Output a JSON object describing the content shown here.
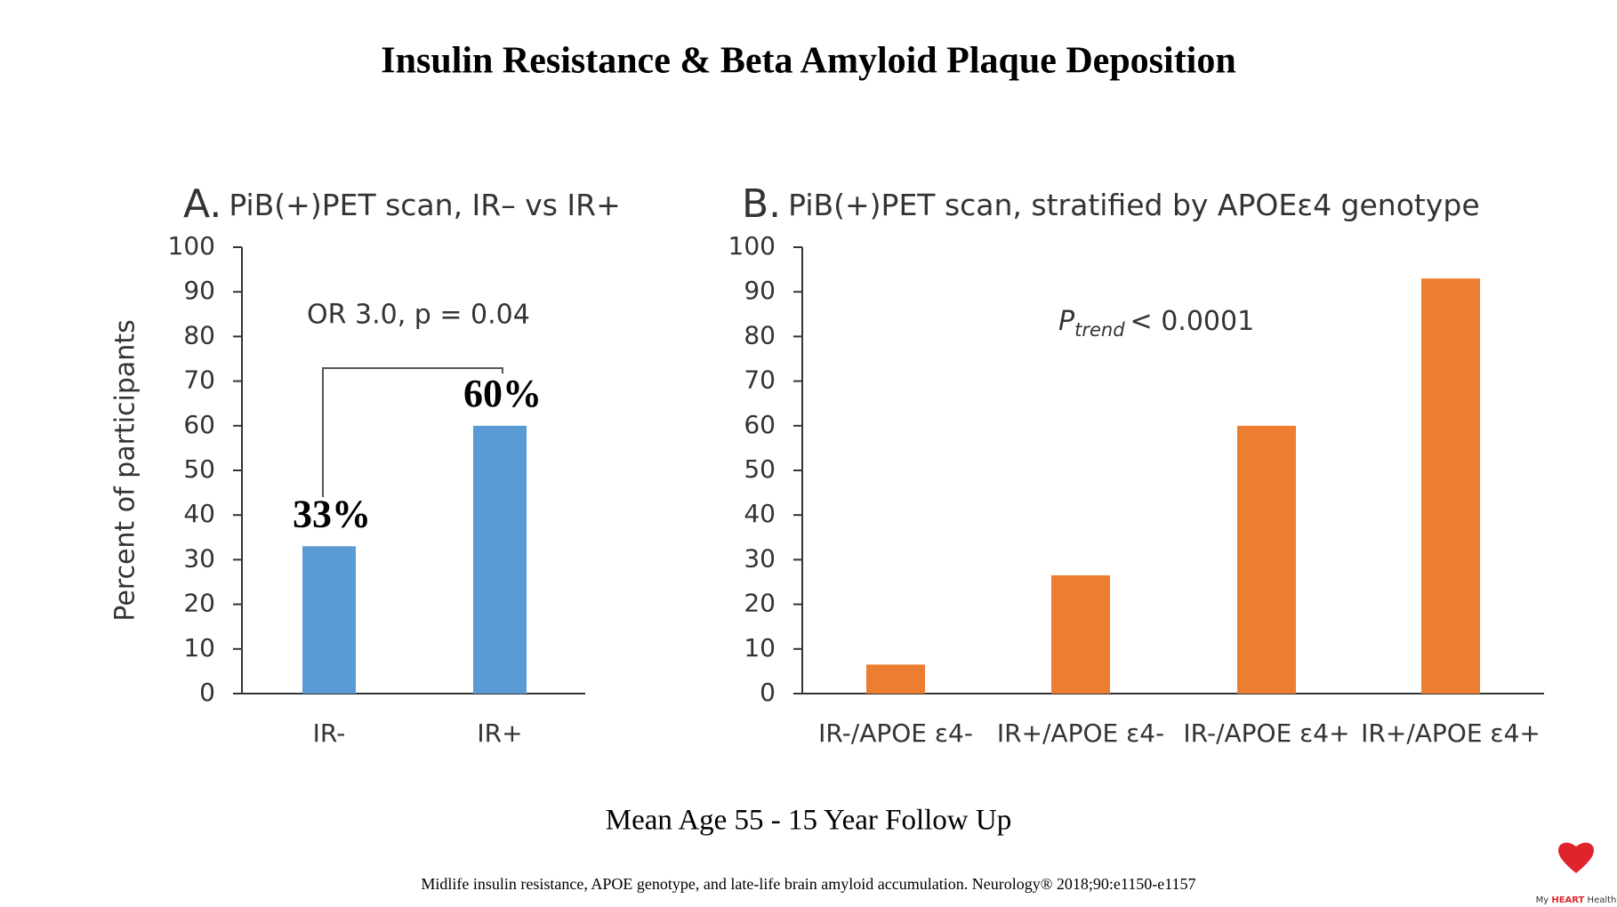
{
  "title": "Insulin Resistance & Beta Amyloid Plaque Deposition",
  "subtitle": "Mean Age 55 - 15 Year Follow Up",
  "citation": "Midlife insulin resistance, APOE genotype, and late-life brain amyloid accumulation. Neurology® 2018;90:e1150-e1157",
  "logo": {
    "prefix": "My",
    "brand": "HEART",
    "suffix": "Health"
  },
  "chart_data": [
    {
      "type": "bar",
      "panel": "A.",
      "title": "PiB(+)PET scan, IR– vs IR+",
      "ylabel": "Percent of participants",
      "annotation": "OR 3.0, p = 0.04",
      "categories": [
        "IR-",
        "IR+"
      ],
      "values": [
        33,
        60
      ],
      "value_labels": [
        "33%",
        "60%"
      ],
      "color": "#5b9bd5",
      "ylim": [
        0,
        100
      ],
      "yticks": [
        0,
        10,
        20,
        30,
        40,
        50,
        60,
        70,
        80,
        90,
        100
      ]
    },
    {
      "type": "bar",
      "panel": "B.",
      "title": "PiB(+)PET scan, stratified by APOEε4 genotype",
      "annotation": {
        "symbol": "P",
        "subscript": "trend",
        "text": "< 0.0001"
      },
      "categories": [
        "IR-/APOE ε4-",
        "IR+/APOE ε4-",
        "IR-/APOE ε4+",
        "IR+/APOE ε4+"
      ],
      "values": [
        6.5,
        26.5,
        60,
        93
      ],
      "color": "#ed7d31",
      "ylim": [
        0,
        100
      ],
      "yticks": [
        0,
        10,
        20,
        30,
        40,
        50,
        60,
        70,
        80,
        90,
        100
      ]
    }
  ]
}
